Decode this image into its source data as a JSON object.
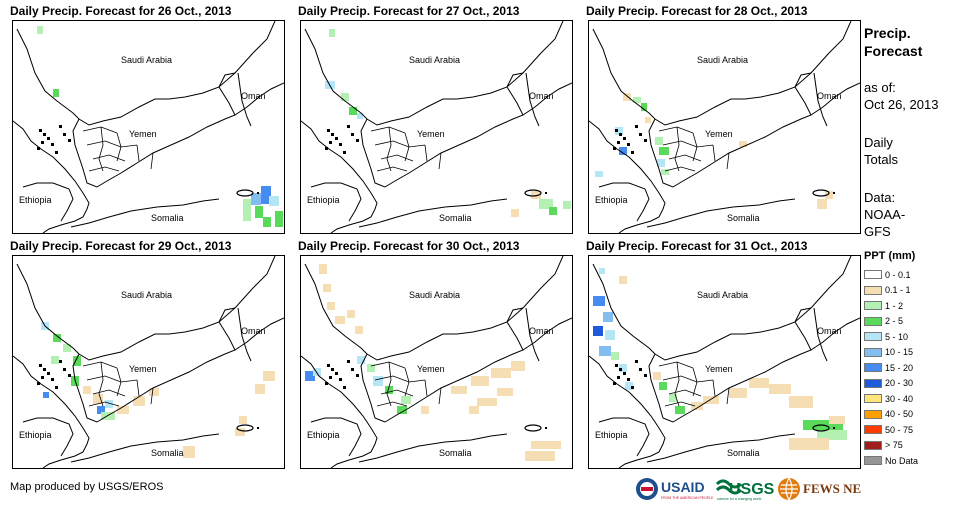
{
  "panels": [
    {
      "title": "Daily Precip. Forecast for 26 Oct., 2013"
    },
    {
      "title": "Daily Precip. Forecast for 27 Oct., 2013"
    },
    {
      "title": "Daily Precip. Forecast for 28 Oct., 2013"
    },
    {
      "title": "Daily Precip. Forecast for 29 Oct., 2013"
    },
    {
      "title": "Daily Precip. Forecast for 30 Oct., 2013"
    },
    {
      "title": "Daily Precip. Forecast for 31 Oct., 2013"
    }
  ],
  "map_labels": {
    "saudi": "Saudi Arabia",
    "oman": "Oman",
    "yemen": "Yemen",
    "ethiopia": "Ethiopia",
    "somalia": "Somalia"
  },
  "sidebar": {
    "title_line1": "Precip.",
    "title_line2": "Forecast",
    "asof_label": "as of:",
    "asof_date": "Oct 26, 2013",
    "daily1": "Daily",
    "daily2": "Totals",
    "data_label": "Data:",
    "data_src1": "NOAA-",
    "data_src2": "GFS"
  },
  "legend": {
    "title": "PPT (mm)",
    "items": [
      {
        "label": "0 - 0.1",
        "color": "#ffffff"
      },
      {
        "label": "0.1 - 1",
        "color": "#f5deb3"
      },
      {
        "label": "1 - 2",
        "color": "#b4f0b4"
      },
      {
        "label": "2 - 5",
        "color": "#5ada5a"
      },
      {
        "label": "5 - 10",
        "color": "#b4e6f5"
      },
      {
        "label": "10 - 15",
        "color": "#82bef0"
      },
      {
        "label": "15 - 20",
        "color": "#468cf0"
      },
      {
        "label": "20 - 30",
        "color": "#1e5adc"
      },
      {
        "label": "30 - 40",
        "color": "#ffe678"
      },
      {
        "label": "40 - 50",
        "color": "#ffa000"
      },
      {
        "label": "50 - 75",
        "color": "#ff3c00"
      },
      {
        "label": "> 75",
        "color": "#a01e1e"
      },
      {
        "label": "No Data",
        "color": "#969696"
      }
    ]
  },
  "credit": "Map produced by USGS/EROS",
  "logos": {
    "usaid": "USAID",
    "usaid_tag": "FROM THE AMERICAN PEOPLE",
    "usgs": "USGS",
    "usgs_tag": "science for a changing world",
    "fews": "FEWS NET"
  }
}
